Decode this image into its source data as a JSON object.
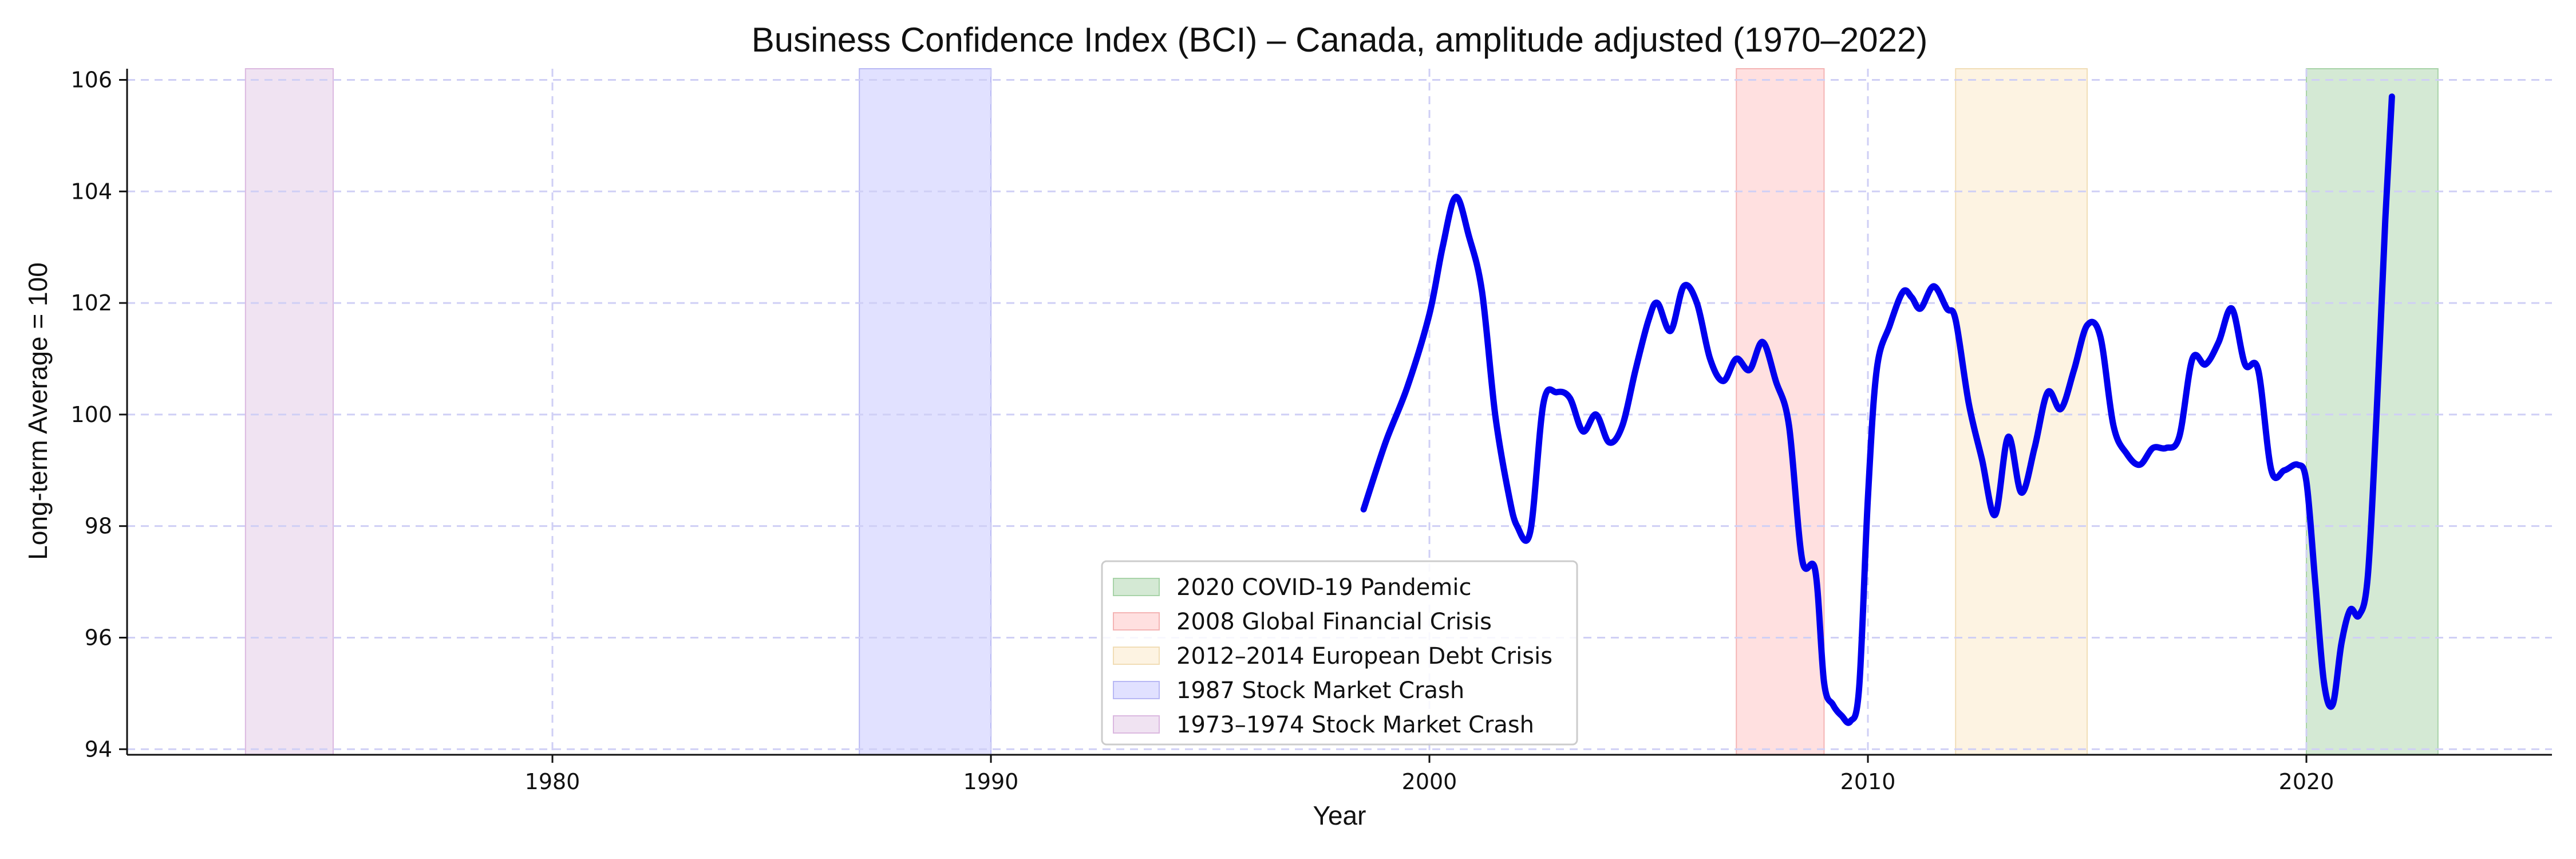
{
  "chart_data": {
    "type": "line",
    "title": "Business Confidence Index (BCI) – Canada, amplitude adjusted (1970–2022)",
    "xlabel": "Year",
    "ylabel": "Long-term Average = 100",
    "xlim": [
      1970.3,
      2025.6
    ],
    "ylim": [
      93.9,
      106.2
    ],
    "xticks": [
      1980,
      1990,
      2000,
      2010,
      2020
    ],
    "yticks": [
      94,
      96,
      98,
      100,
      102,
      104,
      106
    ],
    "grid": true,
    "legend_position": "bottom-center",
    "line_color": "#0000ee",
    "series": [
      {
        "x": [
          1998.5,
          1999.0,
          1999.5,
          2000.0,
          2000.3,
          2000.6,
          2000.9,
          2001.2,
          2001.5,
          2001.8,
          2002.0,
          2002.3,
          2002.6,
          2002.9,
          2003.2,
          2003.5,
          2003.8,
          2004.1,
          2004.4,
          2004.7,
          2005.0,
          2005.2,
          2005.5,
          2005.8,
          2006.1,
          2006.4,
          2006.7,
          2007.0,
          2007.3,
          2007.6,
          2007.9,
          2008.2,
          2008.5,
          2008.8,
          2009.0,
          2009.2,
          2009.4,
          2009.6,
          2009.8,
          2010.0,
          2010.2,
          2010.5,
          2010.8,
          2011.0,
          2011.2,
          2011.5,
          2011.8,
          2012.0,
          2012.3,
          2012.6,
          2012.9,
          2013.2,
          2013.5,
          2013.8,
          2014.1,
          2014.4,
          2014.7,
          2015.0,
          2015.3,
          2015.6,
          2015.9,
          2016.2,
          2016.5,
          2016.8,
          2017.1,
          2017.4,
          2017.7,
          2018.0,
          2018.3,
          2018.6,
          2018.9,
          2019.2,
          2019.5,
          2019.8,
          2020.0,
          2020.2,
          2020.4,
          2020.6,
          2020.8,
          2021.0,
          2021.2,
          2021.4,
          2021.6,
          2021.8,
          2021.95
        ],
        "values": [
          98.3,
          99.5,
          100.5,
          101.8,
          103.0,
          103.9,
          103.2,
          102.2,
          100.0,
          98.6,
          98.0,
          97.9,
          100.2,
          100.4,
          100.3,
          99.7,
          100.0,
          99.5,
          99.8,
          100.8,
          101.7,
          102.0,
          101.5,
          102.3,
          102.0,
          101.0,
          100.6,
          101.0,
          100.8,
          101.3,
          100.6,
          99.8,
          97.4,
          97.2,
          95.2,
          94.8,
          94.6,
          94.5,
          95.1,
          98.5,
          100.8,
          101.6,
          102.2,
          102.1,
          101.9,
          102.3,
          101.9,
          101.7,
          100.2,
          99.2,
          98.2,
          99.6,
          98.6,
          99.4,
          100.4,
          100.1,
          100.8,
          101.6,
          101.4,
          99.8,
          99.3,
          99.1,
          99.4,
          99.4,
          99.6,
          101.0,
          100.9,
          101.3,
          101.9,
          100.9,
          100.8,
          99.0,
          99.0,
          99.1,
          98.8,
          97.0,
          95.2,
          94.8,
          95.9,
          96.5,
          96.4,
          97.1,
          100.0,
          103.5,
          105.7
        ]
      }
    ],
    "shaded_regions": [
      {
        "label": "2020 COVID-19 Pandemic",
        "start": 2020.0,
        "end": 2023.0,
        "color": "#d4e9d4",
        "edge": "#a8d3a8"
      },
      {
        "label": "2008 Global Financial Crisis",
        "start": 2007.0,
        "end": 2009.0,
        "color": "#ffe0e0",
        "edge": "#f4b4b4"
      },
      {
        "label": "2012–2014 European Debt Crisis",
        "start": 2012.0,
        "end": 2015.0,
        "color": "#fdf3e2",
        "edge": "#f1ddb6"
      },
      {
        "label": "1987 Stock Market Crash",
        "start": 1987.0,
        "end": 1990.0,
        "color": "#e1e1ff",
        "edge": "#b8b8f4"
      },
      {
        "label": "1973–1974 Stock Market Crash",
        "start": 1973.0,
        "end": 1975.0,
        "color": "#f0e3f2",
        "edge": "#dbb8e0"
      }
    ]
  }
}
